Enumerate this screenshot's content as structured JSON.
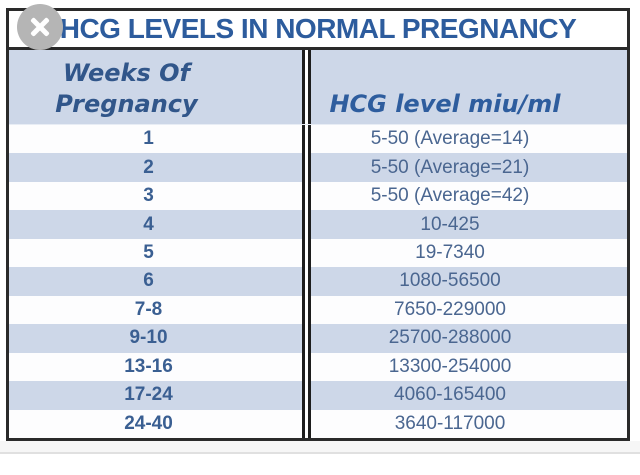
{
  "page_title": "HCG LEVELS IN NORMAL PREGNANCY",
  "viewer": {
    "close_icon": "x-close"
  },
  "table": {
    "header": {
      "weeks_line1": "Weeks  Of",
      "weeks_line2": "Pregnancy",
      "level_label": "HCG level miu/ml"
    },
    "rows": [
      {
        "weeks": "1",
        "level": "5-50 (Average=14)"
      },
      {
        "weeks": "2",
        "level": "5-50 (Average=21)"
      },
      {
        "weeks": "3",
        "level": "5-50 (Average=42)"
      },
      {
        "weeks": "4",
        "level": "10-425"
      },
      {
        "weeks": "5",
        "level": "19-7340"
      },
      {
        "weeks": "6",
        "level": "1080-56500"
      },
      {
        "weeks": "7-8",
        "level": "7650-229000"
      },
      {
        "weeks": "9-10",
        "level": "25700-288000"
      },
      {
        "weeks": "13-16",
        "level": "13300-254000"
      },
      {
        "weeks": "17-24",
        "level": "4060-165400"
      },
      {
        "weeks": "24-40",
        "level": "3640-117000"
      }
    ]
  },
  "colors": {
    "title_text": "#2d5c9d",
    "header_text": "#31568a",
    "header_level_text": "#2e5d9e",
    "week_text": "#3a5f92",
    "value_text": "#4a6690",
    "row_alt_bg": "#cdd7e8",
    "row_bg": "#fdfdfe",
    "outer_border": "#2a2a2a",
    "close_button_bg": "#b5b5b5"
  },
  "chart_data": {
    "type": "table",
    "title": "HCG LEVELS IN NORMAL PREGNANCY",
    "columns": [
      "Weeks Of Pregnancy",
      "HCG level miu/ml"
    ],
    "rows": [
      [
        "1",
        "5-50 (Average=14)"
      ],
      [
        "2",
        "5-50 (Average=21)"
      ],
      [
        "3",
        "5-50 (Average=42)"
      ],
      [
        "4",
        "10-425"
      ],
      [
        "5",
        "19-7340"
      ],
      [
        "6",
        "1080-56500"
      ],
      [
        "7-8",
        "7650-229000"
      ],
      [
        "9-10",
        "25700-288000"
      ],
      [
        "13-16",
        "13300-254000"
      ],
      [
        "17-24",
        "4060-165400"
      ],
      [
        "24-40",
        "3640-117000"
      ]
    ]
  }
}
